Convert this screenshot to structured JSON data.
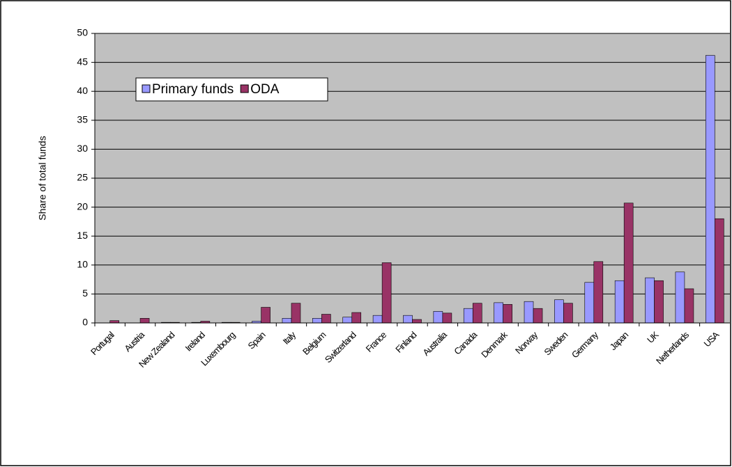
{
  "chart_data": {
    "type": "bar",
    "y_label": "Share of total funds",
    "categories": [
      "Portugal",
      "Austria",
      "New Zealand",
      "Ireland",
      "Luxembourg",
      "Spain",
      "Italy",
      "Belgium",
      "Switzerland",
      "France",
      "Finland",
      "Australia",
      "Canada",
      "Denmark",
      "Norway",
      "Sweden",
      "Germany",
      "Japan",
      "UK",
      "Netherlands",
      "USA"
    ],
    "series": [
      {
        "name": "Primary funds",
        "color": "#9999ff",
        "values": [
          0,
          0,
          0.1,
          0.1,
          0.1,
          0.3,
          0.8,
          0.8,
          1.0,
          1.3,
          1.3,
          2.0,
          2.5,
          3.5,
          3.7,
          4.0,
          7.0,
          7.3,
          7.8,
          8.8,
          46.2
        ]
      },
      {
        "name": "ODA",
        "color": "#993366",
        "values": [
          0.4,
          0.8,
          0.1,
          0.3,
          0.1,
          2.7,
          3.4,
          1.5,
          1.8,
          10.4,
          0.6,
          1.7,
          3.4,
          3.2,
          2.5,
          3.4,
          10.6,
          20.7,
          7.3,
          5.9,
          18.0
        ]
      }
    ],
    "ylim": [
      0,
      50
    ],
    "yticks": [
      0,
      5,
      10,
      15,
      20,
      25,
      30,
      35,
      40,
      45,
      50
    ],
    "grid": true,
    "legend": "top-left"
  }
}
